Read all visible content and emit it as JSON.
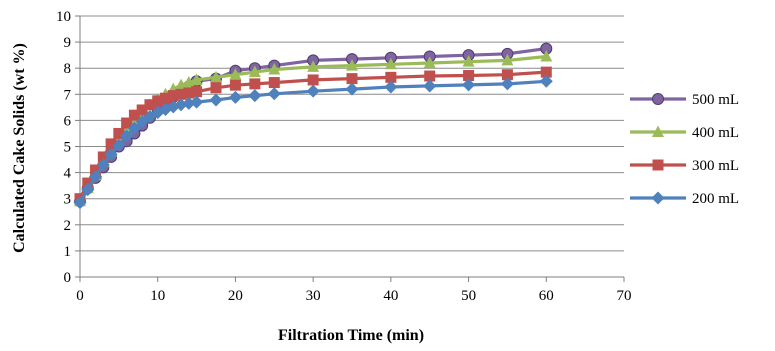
{
  "chart_data": {
    "type": "line",
    "title": "",
    "xlabel": "Filtration Time (min)",
    "ylabel": "Calculated Cake Solids (wt %)",
    "xlim": [
      0,
      70
    ],
    "ylim": [
      0,
      10
    ],
    "xticks": [
      0,
      10,
      20,
      30,
      40,
      50,
      60,
      70
    ],
    "yticks": [
      0,
      1,
      2,
      3,
      4,
      5,
      6,
      7,
      8,
      9,
      10
    ],
    "grid": "horizontal",
    "legend_position": "right",
    "x": [
      0,
      1,
      2,
      3,
      4,
      5,
      6,
      7,
      8,
      9,
      10,
      11,
      12,
      13,
      14,
      15,
      17.5,
      20,
      22.5,
      25,
      30,
      35,
      40,
      45,
      50,
      55,
      60
    ],
    "series": [
      {
        "name": "500 mL",
        "color": "#8064A2",
        "marker": "circle",
        "values": [
          2.9,
          3.4,
          3.8,
          4.2,
          4.6,
          5.0,
          5.2,
          5.5,
          5.8,
          6.1,
          6.4,
          6.7,
          6.9,
          7.1,
          7.3,
          7.5,
          7.6,
          7.9,
          8.0,
          8.1,
          8.3,
          8.35,
          8.4,
          8.45,
          8.5,
          8.55,
          8.75
        ]
      },
      {
        "name": "400 mL",
        "color": "#9BBB59",
        "marker": "triangle",
        "values": [
          2.9,
          3.4,
          3.9,
          4.4,
          4.8,
          5.2,
          5.6,
          6.0,
          6.3,
          6.6,
          6.8,
          7.0,
          7.2,
          7.35,
          7.45,
          7.55,
          7.65,
          7.75,
          7.85,
          7.95,
          8.05,
          8.1,
          8.15,
          8.2,
          8.25,
          8.3,
          8.45
        ]
      },
      {
        "name": "300 mL",
        "color": "#C0504D",
        "marker": "square",
        "values": [
          3.0,
          3.6,
          4.1,
          4.6,
          5.1,
          5.5,
          5.9,
          6.2,
          6.4,
          6.6,
          6.75,
          6.85,
          6.95,
          7.0,
          7.05,
          7.1,
          7.25,
          7.35,
          7.4,
          7.45,
          7.55,
          7.6,
          7.65,
          7.7,
          7.72,
          7.75,
          7.85
        ]
      },
      {
        "name": "200 mL",
        "color": "#4F81BD",
        "marker": "diamond",
        "values": [
          2.85,
          3.35,
          3.85,
          4.3,
          4.7,
          5.05,
          5.4,
          5.7,
          5.95,
          6.15,
          6.3,
          6.42,
          6.52,
          6.6,
          6.65,
          6.7,
          6.78,
          6.88,
          6.95,
          7.02,
          7.12,
          7.2,
          7.28,
          7.32,
          7.36,
          7.4,
          7.5
        ]
      }
    ]
  }
}
